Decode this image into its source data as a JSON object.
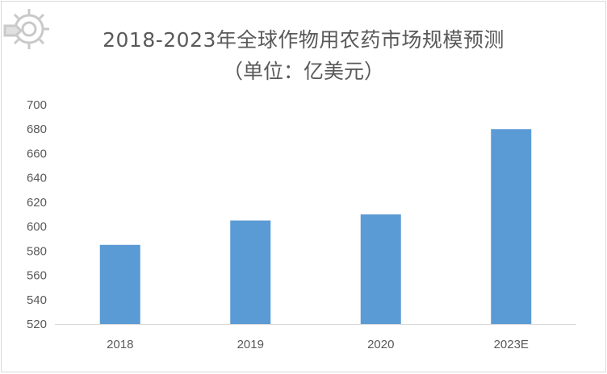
{
  "chart_data": {
    "type": "bar",
    "title": "2018-2023年全球作物用农药市场规模预测",
    "subtitle": "（单位：亿美元）",
    "categories": [
      "2018",
      "2019",
      "2020",
      "2023E"
    ],
    "values": [
      585,
      605,
      610,
      680
    ],
    "ylim": [
      520,
      700
    ],
    "yticks": [
      "520",
      "540",
      "560",
      "580",
      "600",
      "620",
      "640",
      "660",
      "680",
      "700"
    ],
    "grid": false,
    "legend": "none",
    "bar_color": "#5b9bd5",
    "axis_color": "#d9d9d9"
  },
  "watermark": {
    "icon": "gear-logo-icon"
  }
}
